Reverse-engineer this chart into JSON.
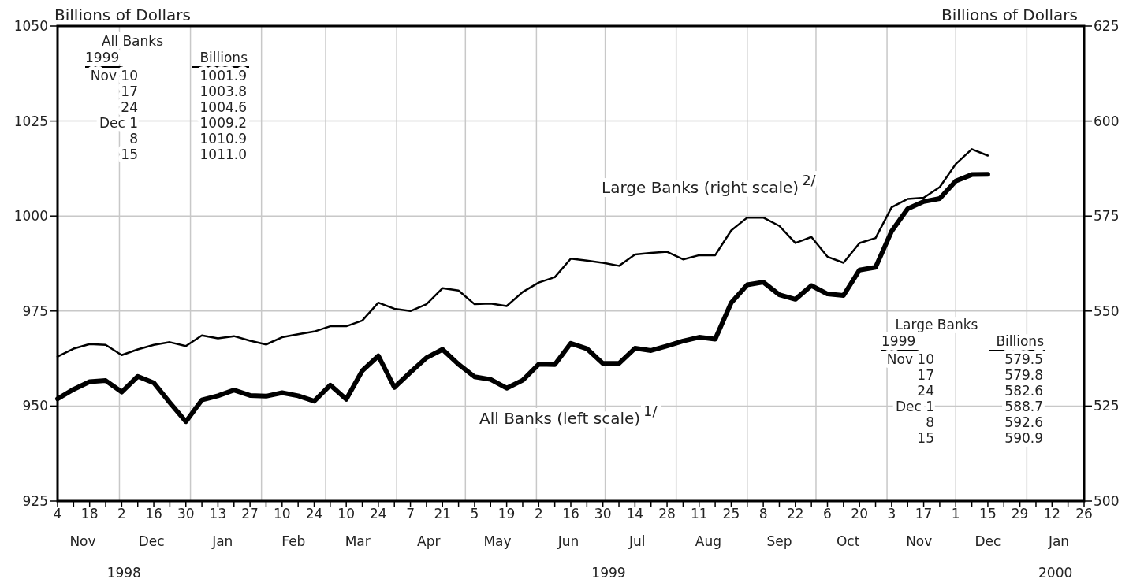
{
  "chart_data": {
    "type": "line",
    "ylabel": "Billions of Dollars",
    "y2label": "Billions of Dollars",
    "x": [
      "1998-11-04",
      "1998-11-11",
      "1998-11-18",
      "1998-11-25",
      "1998-12-02",
      "1998-12-09",
      "1998-12-16",
      "1998-12-23",
      "1998-12-30",
      "1999-01-06",
      "1999-01-13",
      "1999-01-20",
      "1999-01-27",
      "1999-02-03",
      "1999-02-10",
      "1999-02-17",
      "1999-02-24",
      "1999-03-03",
      "1999-03-10",
      "1999-03-17",
      "1999-03-24",
      "1999-03-31",
      "1999-04-07",
      "1999-04-14",
      "1999-04-21",
      "1999-04-28",
      "1999-05-05",
      "1999-05-12",
      "1999-05-19",
      "1999-05-26",
      "1999-06-02",
      "1999-06-09",
      "1999-06-16",
      "1999-06-23",
      "1999-06-30",
      "1999-07-07",
      "1999-07-14",
      "1999-07-21",
      "1999-07-28",
      "1999-08-04",
      "1999-08-11",
      "1999-08-18",
      "1999-08-25",
      "1999-09-01",
      "1999-09-08",
      "1999-09-15",
      "1999-09-22",
      "1999-09-29",
      "1999-10-06",
      "1999-10-13",
      "1999-10-20",
      "1999-10-27",
      "1999-11-03",
      "1999-11-10",
      "1999-11-17",
      "1999-11-24",
      "1999-12-01",
      "1999-12-08",
      "1999-12-15"
    ],
    "series": [
      {
        "name": "All Banks (left scale)$^{1/}$",
        "color": "#000000",
        "axis": "y",
        "values": [
          951.9,
          954.4,
          956.4,
          956.7,
          953.7,
          957.8,
          956.1,
          950.9,
          945.9,
          951.6,
          952.7,
          954.2,
          952.8,
          952.6,
          953.5,
          952.7,
          951.3,
          955.5,
          951.8,
          959.3,
          963.2,
          954.9,
          958.9,
          962.7,
          964.9,
          961.0,
          957.7,
          957.0,
          954.7,
          956.8,
          961.0,
          960.9,
          966.5,
          965.1,
          961.2,
          961.2,
          965.2,
          964.6,
          965.8,
          967.1,
          968.1,
          967.6,
          977.2,
          981.9,
          982.6,
          979.3,
          978.1,
          981.7,
          979.5,
          979.1,
          985.8,
          986.5,
          996.0,
          1001.9,
          1003.8,
          1004.6,
          1009.2,
          1010.9,
          1011.0
        ]
      },
      {
        "name": "Large Banks (right scale)$^{2/}$",
        "color": "#000000",
        "axis": "y2",
        "values": [
          538.0,
          540.1,
          541.3,
          541.1,
          538.4,
          539.9,
          541.1,
          541.8,
          540.8,
          543.6,
          542.8,
          543.4,
          542.2,
          541.2,
          543.1,
          543.9,
          544.6,
          546.0,
          546.0,
          547.5,
          552.2,
          550.6,
          550.0,
          551.8,
          556.0,
          555.4,
          551.8,
          552.0,
          551.3,
          555.0,
          557.5,
          558.9,
          563.8,
          563.3,
          562.7,
          561.9,
          564.9,
          565.3,
          565.6,
          563.6,
          564.7,
          564.7,
          571.2,
          574.6,
          574.6,
          572.4,
          567.9,
          569.5,
          564.3,
          562.7,
          567.9,
          569.2,
          577.3,
          579.5,
          579.8,
          582.6,
          588.7,
          592.6,
          590.9
        ]
      }
    ],
    "xlim": [
      "1998-11-04",
      "2000-01-26"
    ],
    "xticks": [
      {
        "value": "1998-11-04",
        "label": "4"
      },
      {
        "value": "1998-11-11",
        "label": null
      },
      {
        "value": "1998-11-18",
        "label": "18"
      },
      {
        "value": "1998-11-25",
        "label": null
      },
      {
        "value": "1998-12-02",
        "label": "2"
      },
      {
        "value": "1998-12-09",
        "label": null
      },
      {
        "value": "1998-12-16",
        "label": "16"
      },
      {
        "value": "1998-12-23",
        "label": null
      },
      {
        "value": "1998-12-30",
        "label": "30"
      },
      {
        "value": "1999-01-06",
        "label": null
      },
      {
        "value": "1999-01-13",
        "label": "13"
      },
      {
        "value": "1999-01-20",
        "label": null
      },
      {
        "value": "1999-01-27",
        "label": "27"
      },
      {
        "value": "1999-02-03",
        "label": null
      },
      {
        "value": "1999-02-10",
        "label": "10"
      },
      {
        "value": "1999-02-17",
        "label": null
      },
      {
        "value": "1999-02-24",
        "label": "24"
      },
      {
        "value": "1999-03-03",
        "label": null
      },
      {
        "value": "1999-03-10",
        "label": "10"
      },
      {
        "value": "1999-03-17",
        "label": null
      },
      {
        "value": "1999-03-24",
        "label": "24"
      },
      {
        "value": "1999-03-31",
        "label": null
      },
      {
        "value": "1999-04-07",
        "label": "7"
      },
      {
        "value": "1999-04-14",
        "label": null
      },
      {
        "value": "1999-04-21",
        "label": "21"
      },
      {
        "value": "1999-04-28",
        "label": null
      },
      {
        "value": "1999-05-05",
        "label": "5"
      },
      {
        "value": "1999-05-12",
        "label": null
      },
      {
        "value": "1999-05-19",
        "label": "19"
      },
      {
        "value": "1999-05-26",
        "label": null
      },
      {
        "value": "1999-06-02",
        "label": "2"
      },
      {
        "value": "1999-06-09",
        "label": null
      },
      {
        "value": "1999-06-16",
        "label": "16"
      },
      {
        "value": "1999-06-23",
        "label": null
      },
      {
        "value": "1999-06-30",
        "label": "30"
      },
      {
        "value": "1999-07-07",
        "label": null
      },
      {
        "value": "1999-07-14",
        "label": "14"
      },
      {
        "value": "1999-07-21",
        "label": null
      },
      {
        "value": "1999-07-28",
        "label": "28"
      },
      {
        "value": "1999-08-04",
        "label": null
      },
      {
        "value": "1999-08-11",
        "label": "11"
      },
      {
        "value": "1999-08-18",
        "label": null
      },
      {
        "value": "1999-08-25",
        "label": "25"
      },
      {
        "value": "1999-09-01",
        "label": null
      },
      {
        "value": "1999-09-08",
        "label": "8"
      },
      {
        "value": "1999-09-15",
        "label": null
      },
      {
        "value": "1999-09-22",
        "label": "22"
      },
      {
        "value": "1999-09-29",
        "label": null
      },
      {
        "value": "1999-10-06",
        "label": "6"
      },
      {
        "value": "1999-10-13",
        "label": null
      },
      {
        "value": "1999-10-20",
        "label": "20"
      },
      {
        "value": "1999-10-27",
        "label": null
      },
      {
        "value": "1999-11-03",
        "label": "3"
      },
      {
        "value": "1999-11-10",
        "label": null
      },
      {
        "value": "1999-11-17",
        "label": "17"
      },
      {
        "value": "1999-11-24",
        "label": null
      },
      {
        "value": "1999-12-01",
        "label": "1"
      },
      {
        "value": "1999-12-08",
        "label": null
      },
      {
        "value": "1999-12-15",
        "label": "15"
      },
      {
        "value": "1999-12-22",
        "label": null
      },
      {
        "value": "1999-12-29",
        "label": "29"
      },
      {
        "value": "2000-01-05",
        "label": null
      },
      {
        "value": "2000-01-12",
        "label": "12"
      },
      {
        "value": "2000-01-19",
        "label": null
      },
      {
        "value": "2000-01-26",
        "label": "26"
      }
    ],
    "ylim": [
      925,
      1050
    ],
    "yticks": [
      925,
      950,
      975,
      1000,
      1025,
      1050
    ],
    "y2lim": [
      500,
      625
    ],
    "y2ticks": [
      500,
      525,
      550,
      575,
      600,
      625
    ],
    "grid": true,
    "annotations": [
      "All Banks",
      "1999",
      "Billions",
      "Nov 10",
      "1001.9",
      "17",
      "1003.8",
      "24",
      "1004.6",
      "Dec 1",
      "1009.2",
      "8",
      "1010.9",
      "15",
      "1011.0",
      "Large Banks",
      "1999",
      "Billions",
      "Nov 10",
      "579.5",
      "17",
      "579.8",
      "24",
      "582.6",
      "Dec 1",
      "588.7",
      "8",
      "592.6",
      "15",
      "590.9",
      "Nov",
      "Dec",
      "Jan",
      "Feb",
      "Mar",
      "Apr",
      "May",
      "Jun",
      "Jul",
      "Aug",
      "Sep",
      "Oct",
      "Nov",
      "Dec",
      "Jan",
      "1998",
      "1999",
      "2000"
    ]
  }
}
